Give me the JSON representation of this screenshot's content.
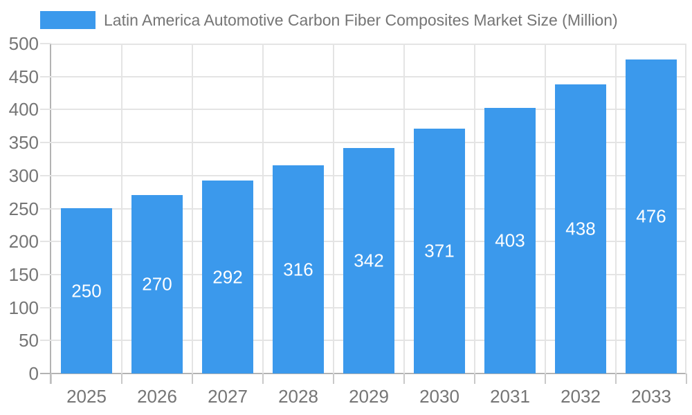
{
  "chart_data": {
    "type": "bar",
    "title": "Latin America Automotive Carbon Fiber Composites Market Size (Million)",
    "categories": [
      "2025",
      "2026",
      "2027",
      "2028",
      "2029",
      "2030",
      "2031",
      "2032",
      "2033"
    ],
    "values": [
      250,
      270,
      292,
      316,
      342,
      371,
      403,
      438,
      476
    ],
    "xlabel": "",
    "ylabel": "",
    "ylim": [
      0,
      500
    ],
    "ytick_step": 50,
    "yticks": [
      0,
      50,
      100,
      150,
      200,
      250,
      300,
      350,
      400,
      450,
      500
    ],
    "grid": true,
    "legend_position": "top-left",
    "bar_color": "#3B99EC",
    "value_label_color": "#ffffff",
    "tick_label_color": "#757575",
    "grid_color": "#e4e4e4",
    "axis_color": "#b3b3b3"
  }
}
